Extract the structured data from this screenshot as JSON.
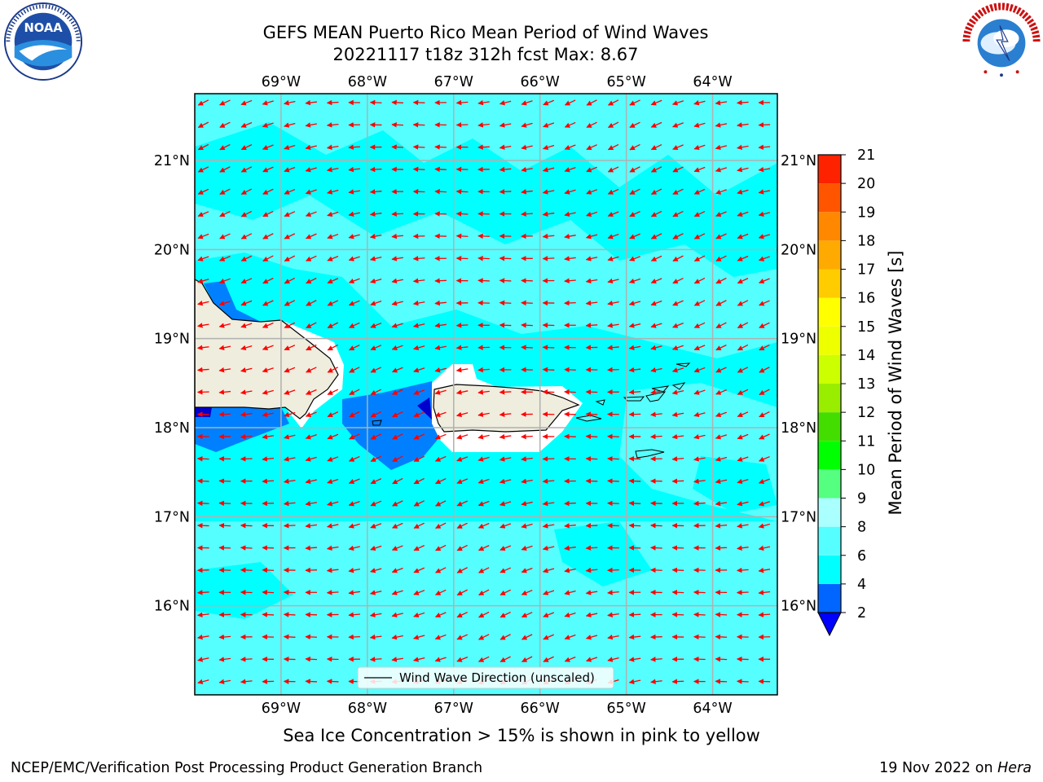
{
  "title": {
    "line1": "GEFS MEAN Puerto Rico Mean Period of Wind Waves",
    "line2": "20221117 t18z 312h fcst   Max: 8.67"
  },
  "logos": {
    "left": "noaa-logo",
    "right": "nws-logo"
  },
  "map": {
    "lon_ticks": [
      "69°W",
      "68°W",
      "67°W",
      "66°W",
      "65°W",
      "64°W"
    ],
    "lat_ticks": [
      "21°N",
      "20°N",
      "19°N",
      "18°N",
      "17°N",
      "16°N"
    ],
    "lon_range": [
      -70.0,
      -63.25
    ],
    "lat_range": [
      15.0,
      21.75
    ],
    "legend_label": "Wind Wave Direction (unscaled)",
    "arrow_color": "#ff0000",
    "land_color": "#efedde",
    "ocean_base_color": "#00ffff"
  },
  "colorbar": {
    "label": "Mean Period of Wind Waves [s]",
    "ticks": [
      "2",
      "4",
      "6",
      "8",
      "9",
      "10",
      "11",
      "12",
      "13",
      "14",
      "15",
      "16",
      "17",
      "18",
      "19",
      "20",
      "21"
    ],
    "colors": [
      "#0066ff",
      "#00ffff",
      "#55ffff",
      "#aaffff",
      "#55ff80",
      "#00ff00",
      "#44dd00",
      "#99ee00",
      "#ccff00",
      "#eeff00",
      "#ffff00",
      "#ffcc00",
      "#ffaa00",
      "#ff8800",
      "#ff5500",
      "#ff2200"
    ],
    "under_color": "#0000ff"
  },
  "footer": {
    "sea_ice": "Sea Ice Concentration > 15% is shown in pink to yellow",
    "branch": "NCEP/EMC/Verification Post Processing Product Generation Branch",
    "date": "19 Nov 2022 on",
    "host": "Hera"
  }
}
